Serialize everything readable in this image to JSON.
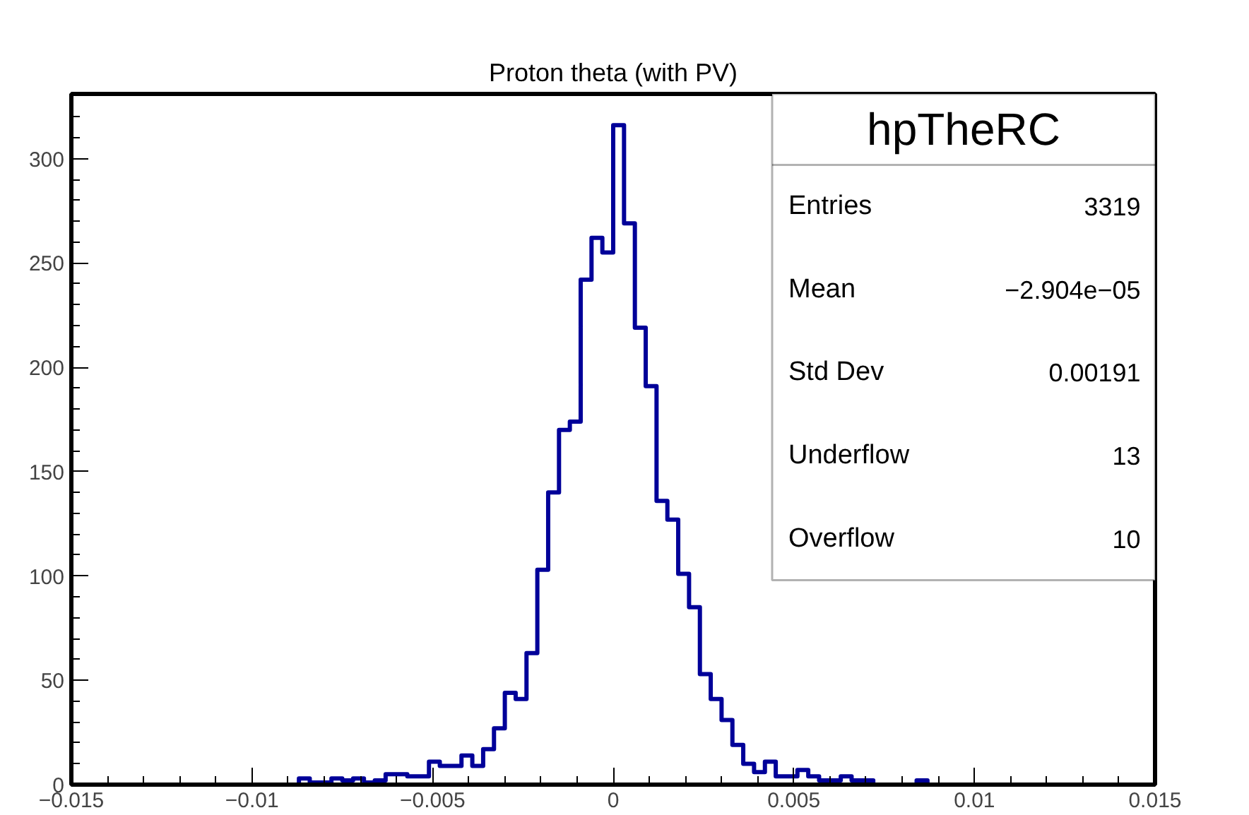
{
  "chart_data": {
    "type": "histogram",
    "title": "Proton theta (with PV)",
    "bins": [
      -0.015,
      -0.0147,
      -0.0144,
      -0.0141,
      -0.0138,
      -0.0135,
      -0.0132,
      -0.0129,
      -0.0126,
      -0.0123,
      -0.012,
      -0.0117,
      -0.0114,
      -0.0111,
      -0.0108,
      -0.0105,
      -0.0102,
      -0.0099,
      -0.0096,
      -0.0093,
      -0.009,
      -0.0087,
      -0.0084,
      -0.0081,
      -0.0078,
      -0.0075,
      -0.0072,
      -0.0069,
      -0.0066,
      -0.0063,
      -0.006,
      -0.0057,
      -0.0054,
      -0.0051,
      -0.0048,
      -0.0045,
      -0.0042,
      -0.0039,
      -0.0036,
      -0.0033,
      -0.003,
      -0.0027,
      -0.0024,
      -0.0021,
      -0.0018,
      -0.0015,
      -0.0012,
      -0.0009,
      -0.0006,
      -0.0003,
      0,
      0.0003,
      0.0006,
      0.0009,
      0.0012,
      0.0015,
      0.0018,
      0.0021,
      0.0024,
      0.0027,
      0.003,
      0.0033,
      0.0036,
      0.0039,
      0.0042,
      0.0045,
      0.0048,
      0.0051,
      0.0054,
      0.0057,
      0.006,
      0.0063,
      0.0066,
      0.0069,
      0.0072,
      0.0075,
      0.0078,
      0.0081,
      0.0084,
      0.0087,
      0.009,
      0.0093,
      0.0096,
      0.0099,
      0.0102,
      0.0105,
      0.0108,
      0.0111,
      0.0114,
      0.0117,
      0.012,
      0.0123,
      0.0126,
      0.0129,
      0.0132,
      0.0135,
      0.0138,
      0.0141,
      0.0144,
      0.0147,
      0.015
    ],
    "values": [
      0,
      0,
      0,
      0,
      0,
      0,
      0,
      0,
      0,
      0,
      0,
      0,
      0,
      0,
      0,
      0,
      0,
      0,
      0,
      0,
      0,
      3,
      1,
      1,
      3,
      2,
      3,
      1,
      2,
      5,
      5,
      4,
      4,
      11,
      9,
      9,
      14,
      9,
      17,
      27,
      44,
      41,
      63,
      103,
      140,
      170,
      174,
      242,
      262,
      255,
      316,
      269,
      219,
      191,
      136,
      127,
      101,
      85,
      53,
      41,
      31,
      19,
      10,
      6,
      11,
      4,
      4,
      7,
      4,
      2,
      2,
      4,
      2,
      2,
      0,
      0,
      0,
      0,
      2,
      0,
      0,
      0,
      0,
      0,
      0,
      0,
      0,
      0,
      0,
      0,
      0,
      0,
      0,
      0,
      0,
      0,
      0,
      0,
      0,
      0
    ],
    "color": "#000099",
    "xlim": [
      -0.015,
      0.015
    ],
    "xticks": [
      {
        "value": -0.015,
        "label": "−0.015"
      },
      {
        "value": -0.014,
        "label": null
      },
      {
        "value": -0.013,
        "label": null
      },
      {
        "value": -0.012,
        "label": null
      },
      {
        "value": -0.011,
        "label": null
      },
      {
        "value": -0.01,
        "label": "−0.01"
      },
      {
        "value": -0.009,
        "label": null
      },
      {
        "value": -0.008,
        "label": null
      },
      {
        "value": -0.007,
        "label": null
      },
      {
        "value": -0.006,
        "label": null
      },
      {
        "value": -0.005,
        "label": "−0.005"
      },
      {
        "value": -0.004,
        "label": null
      },
      {
        "value": -0.003,
        "label": null
      },
      {
        "value": -0.002,
        "label": null
      },
      {
        "value": -0.001,
        "label": null
      },
      0,
      {
        "value": 0.001,
        "label": null
      },
      {
        "value": 0.002,
        "label": null
      },
      {
        "value": 0.003,
        "label": null
      },
      {
        "value": 0.004,
        "label": null
      },
      0.005,
      {
        "value": 0.006,
        "label": null
      },
      {
        "value": 0.007,
        "label": null
      },
      {
        "value": 0.008,
        "label": null
      },
      {
        "value": 0.009,
        "label": null
      },
      0.01,
      {
        "value": 0.011,
        "label": null
      },
      {
        "value": 0.012,
        "label": null
      },
      {
        "value": 0.013,
        "label": null
      },
      {
        "value": 0.014,
        "label": null
      },
      0.015
    ],
    "ylim": [
      0,
      331
    ],
    "yticks": [
      0,
      {
        "value": 10,
        "label": null
      },
      {
        "value": 20,
        "label": null
      },
      {
        "value": 30,
        "label": null
      },
      {
        "value": 40,
        "label": null
      },
      50,
      {
        "value": 60,
        "label": null
      },
      {
        "value": 70,
        "label": null
      },
      {
        "value": 80,
        "label": null
      },
      {
        "value": 90,
        "label": null
      },
      100,
      {
        "value": 110,
        "label": null
      },
      {
        "value": 120,
        "label": null
      },
      {
        "value": 130,
        "label": null
      },
      {
        "value": 140,
        "label": null
      },
      150,
      {
        "value": 160,
        "label": null
      },
      {
        "value": 170,
        "label": null
      },
      {
        "value": 180,
        "label": null
      },
      {
        "value": 190,
        "label": null
      },
      200,
      {
        "value": 210,
        "label": null
      },
      {
        "value": 220,
        "label": null
      },
      {
        "value": 230,
        "label": null
      },
      {
        "value": 240,
        "label": null
      },
      250,
      {
        "value": 260,
        "label": null
      },
      {
        "value": 270,
        "label": null
      },
      {
        "value": 280,
        "label": null
      },
      {
        "value": 290,
        "label": null
      },
      300,
      {
        "value": 310,
        "label": null
      },
      {
        "value": 320,
        "label": null
      },
      {
        "value": 330,
        "label": null
      }
    ],
    "annotations": [
      "hpTheRC",
      "Entries",
      "3319",
      "Mean",
      "−2.904e−05",
      "Std Dev",
      "0.00191",
      "Underflow",
      "13",
      "Overflow",
      "10"
    ]
  }
}
